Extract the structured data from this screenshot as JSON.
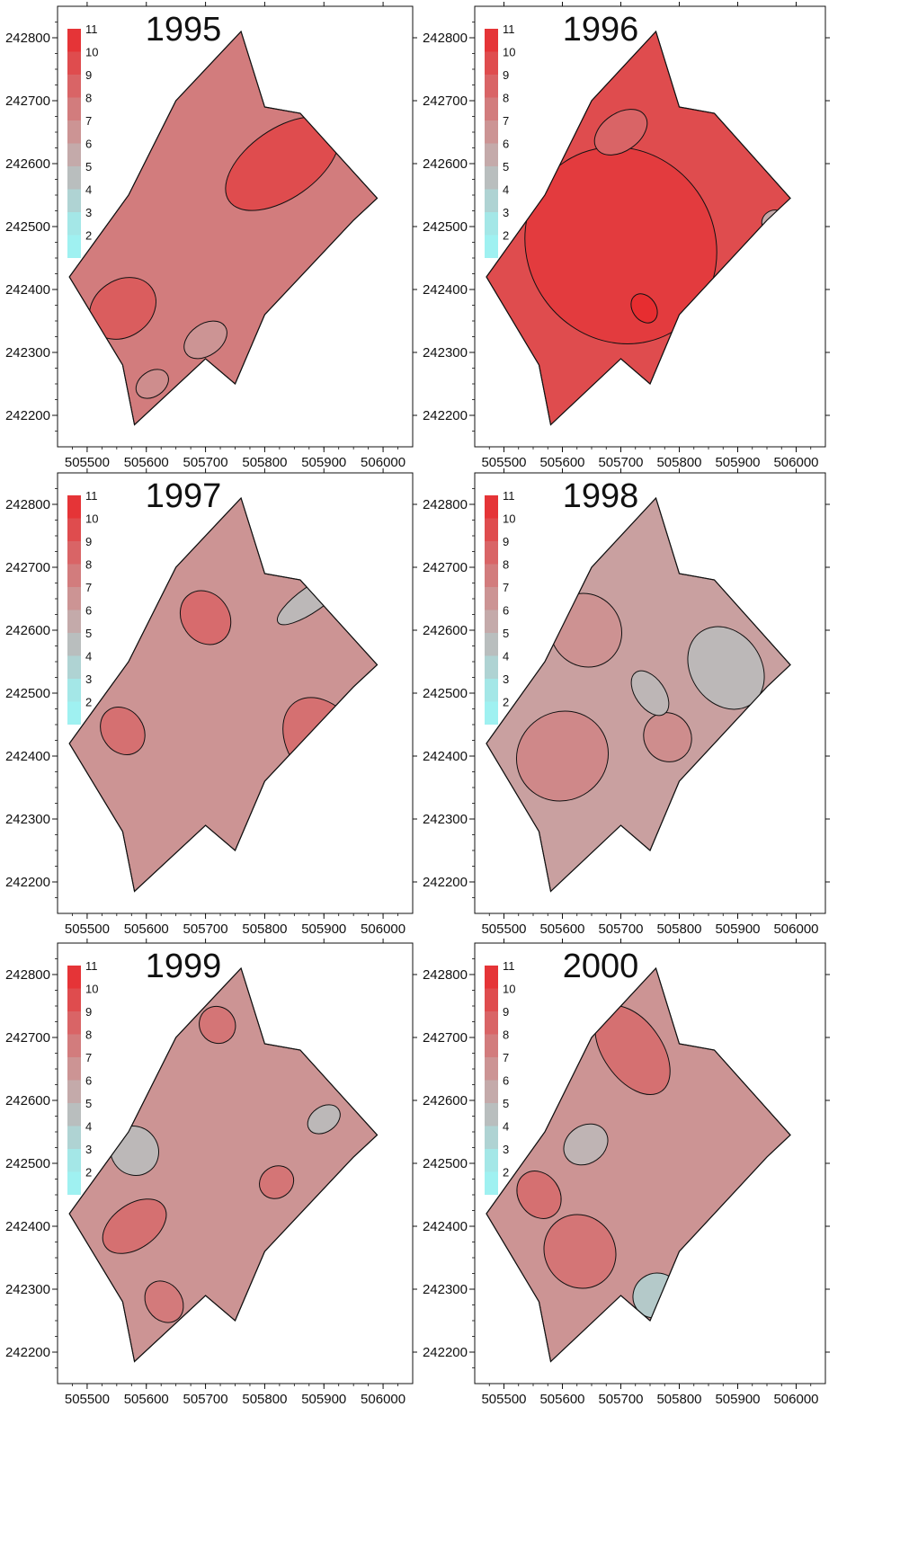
{
  "colors": {
    "low": "#9ff1f1",
    "mid": "#c9a0a0",
    "high": "#e8282b",
    "stroke": "#111111"
  },
  "chart_data": [
    {
      "type": "heatmap",
      "title": "1995",
      "legend": {
        "levels": [
          "11",
          "10",
          "9",
          "8",
          "7",
          "6",
          "5",
          "4",
          "3",
          "2"
        ]
      },
      "x_ticks": [
        "505500",
        "505600",
        "505700",
        "505800",
        "505900",
        "506000"
      ],
      "y_ticks": [
        "242800",
        "242700",
        "242600",
        "242500",
        "242400",
        "242300",
        "242200"
      ],
      "xlim": [
        505450,
        506050
      ],
      "ylim": [
        242150,
        242850
      ],
      "dominant_level": 7.5
    },
    {
      "type": "heatmap",
      "title": "1996",
      "legend": {
        "levels": [
          "11",
          "10",
          "9",
          "8",
          "7",
          "6",
          "5",
          "4",
          "3",
          "2"
        ]
      },
      "x_ticks": [
        "505500",
        "505600",
        "505700",
        "505800",
        "505900",
        "506000"
      ],
      "y_ticks": [
        "242800",
        "242700",
        "242600",
        "242500",
        "242400",
        "242300",
        "242200"
      ],
      "xlim": [
        505450,
        506050
      ],
      "ylim": [
        242150,
        242850
      ],
      "dominant_level": 9.5
    },
    {
      "type": "heatmap",
      "title": "1997",
      "legend": {
        "levels": [
          "11",
          "10",
          "9",
          "8",
          "7",
          "6",
          "5",
          "4",
          "3",
          "2"
        ]
      },
      "x_ticks": [
        "505500",
        "505600",
        "505700",
        "505800",
        "505900",
        "506000"
      ],
      "y_ticks": [
        "242800",
        "242700",
        "242600",
        "242500",
        "242400",
        "242300",
        "242200"
      ],
      "xlim": [
        505450,
        506050
      ],
      "ylim": [
        242150,
        242850
      ],
      "dominant_level": 6.5
    },
    {
      "type": "heatmap",
      "title": "1998",
      "legend": {
        "levels": [
          "11",
          "10",
          "9",
          "8",
          "7",
          "6",
          "5",
          "4",
          "3",
          "2"
        ]
      },
      "x_ticks": [
        "505500",
        "505600",
        "505700",
        "505800",
        "505900",
        "506000"
      ],
      "y_ticks": [
        "242800",
        "242700",
        "242600",
        "242500",
        "242400",
        "242300",
        "242200"
      ],
      "xlim": [
        505450,
        506050
      ],
      "ylim": [
        242150,
        242850
      ],
      "dominant_level": 6
    },
    {
      "type": "heatmap",
      "title": "1999",
      "legend": {
        "levels": [
          "11",
          "10",
          "9",
          "8",
          "7",
          "6",
          "5",
          "4",
          "3",
          "2"
        ]
      },
      "x_ticks": [
        "505500",
        "505600",
        "505700",
        "505800",
        "505900",
        "506000"
      ],
      "y_ticks": [
        "242800",
        "242700",
        "242600",
        "242500",
        "242400",
        "242300",
        "242200"
      ],
      "xlim": [
        505450,
        506050
      ],
      "ylim": [
        242150,
        242850
      ],
      "dominant_level": 6.5
    },
    {
      "type": "heatmap",
      "title": "2000",
      "legend": {
        "levels": [
          "11",
          "10",
          "9",
          "8",
          "7",
          "6",
          "5",
          "4",
          "3",
          "2"
        ]
      },
      "x_ticks": [
        "505500",
        "505600",
        "505700",
        "505800",
        "505900",
        "506000"
      ],
      "y_ticks": [
        "242800",
        "242700",
        "242600",
        "242500",
        "242400",
        "242300",
        "242200"
      ],
      "xlim": [
        505450,
        506050
      ],
      "ylim": [
        242150,
        242850
      ],
      "dominant_level": 6.5
    }
  ]
}
